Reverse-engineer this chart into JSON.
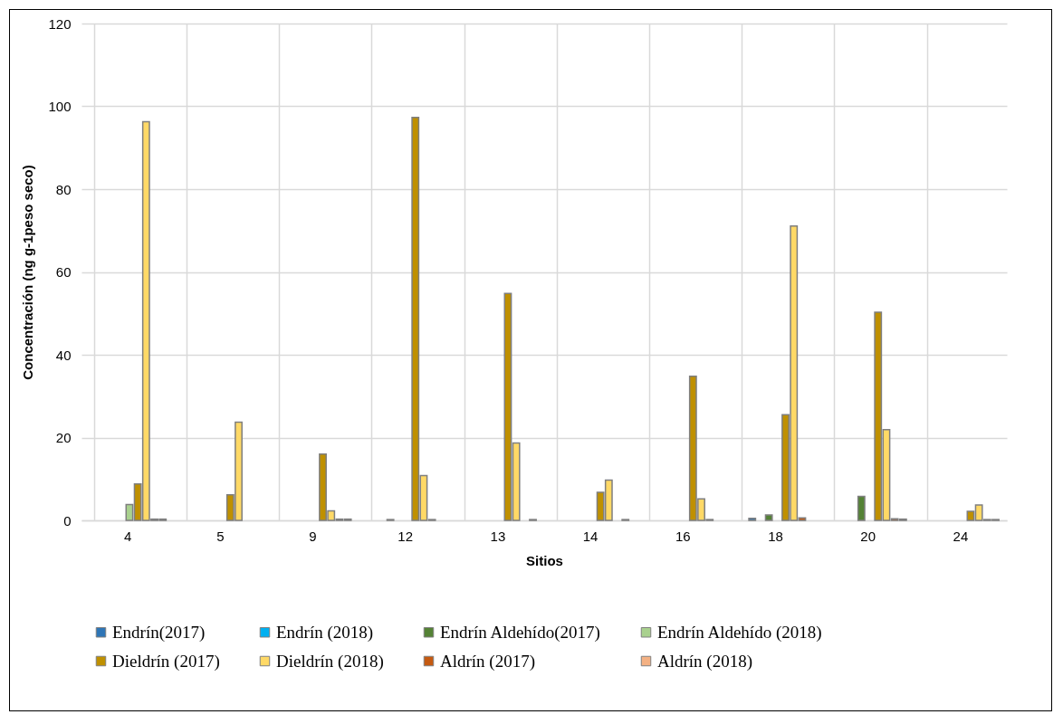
{
  "chart_data": {
    "type": "bar",
    "xlabel": "Sitios",
    "ylabel": "Concentración (ng g-1peso seco)",
    "categories": [
      "4",
      "5",
      "9",
      "12",
      "13",
      "14",
      "16",
      "18",
      "20",
      "24"
    ],
    "series": [
      {
        "name": "Endrín(2017)",
        "color": "#2e75b6",
        "values": [
          null,
          null,
          null,
          null,
          null,
          null,
          null,
          0.5,
          null,
          null
        ]
      },
      {
        "name": "Endrín (2018)",
        "color": "#00b0f0",
        "values": [
          null,
          null,
          null,
          0.2,
          null,
          null,
          null,
          null,
          null,
          null
        ]
      },
      {
        "name": "Endrín Aldehído(2017)",
        "color": "#548235",
        "values": [
          null,
          null,
          null,
          null,
          null,
          null,
          null,
          1.3,
          5.8,
          null
        ]
      },
      {
        "name": "Endrín Aldehído (2018)",
        "color": "#a9d18e",
        "values": [
          3.8,
          null,
          null,
          null,
          null,
          null,
          null,
          null,
          null,
          null
        ]
      },
      {
        "name": "Dieldrín (2017)",
        "color": "#bf9000",
        "values": [
          8.8,
          6.2,
          16,
          97.3,
          54.8,
          6.8,
          34.8,
          25.5,
          50.3,
          2.2
        ]
      },
      {
        "name": "Dieldrín (2018)",
        "color": "#ffd966",
        "values": [
          96.3,
          23.7,
          2.3,
          10.8,
          18.7,
          9.7,
          5.2,
          71.1,
          21.9,
          3.7
        ]
      },
      {
        "name": "Aldrín (2017)",
        "color": "#c55a11",
        "values": [
          0.3,
          null,
          0.3,
          0.2,
          null,
          null,
          0.2,
          0.6,
          0.4,
          0.2
        ]
      },
      {
        "name": "Aldrín (2018)",
        "color": "#f4b183",
        "values": [
          0.3,
          null,
          0.3,
          null,
          0.2,
          0.2,
          null,
          null,
          0.3,
          0.2
        ]
      }
    ],
    "ylim": [
      0,
      120
    ],
    "yticks": [
      0,
      20,
      40,
      60,
      80,
      100,
      120
    ],
    "grid": true,
    "legend": "bottom"
  }
}
